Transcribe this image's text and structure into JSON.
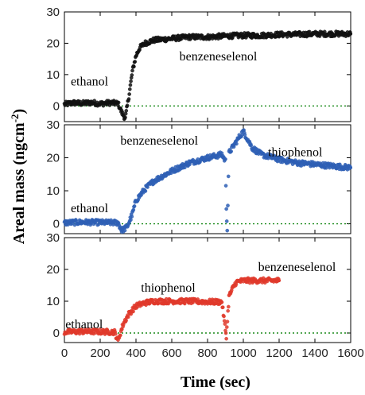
{
  "chart_data": {
    "type": "scatter",
    "xlabel": "Time (sec)",
    "ylabel": "Areal mass (ngcm",
    "ylabel_exp": "-2",
    "ylabel_close": ")",
    "xlim": [
      0,
      1600
    ],
    "x_ticks": [
      "0",
      "200",
      "400",
      "600",
      "800",
      "1000",
      "1200",
      "1400",
      "1600"
    ],
    "panels": [
      {
        "ylim": [
          -5,
          30
        ],
        "y_ticks": [
          "0",
          "10",
          "20",
          "30"
        ],
        "annotations": [
          {
            "text": "ethanol",
            "x": 140,
            "y": 6.5
          },
          {
            "text": "benzeneselenol",
            "x": 860,
            "y": 14.5
          }
        ],
        "series": [
          {
            "color": "#111111",
            "points": [
              [
                0,
                0.5
              ],
              [
                50,
                1.0
              ],
              [
                100,
                0.8
              ],
              [
                150,
                1.1
              ],
              [
                200,
                0.7
              ],
              [
                250,
                1.0
              ],
              [
                300,
                0.8
              ],
              [
                320,
                -2.0
              ],
              [
                340,
                -4.0
              ],
              [
                360,
                3.0
              ],
              [
                380,
                11.0
              ],
              [
                400,
                16.0
              ],
              [
                420,
                18.5
              ],
              [
                450,
                20.0
              ],
              [
                500,
                21.0
              ],
              [
                600,
                21.5
              ],
              [
                700,
                22.0
              ],
              [
                800,
                22.0
              ],
              [
                900,
                22.3
              ],
              [
                1000,
                22.5
              ],
              [
                1100,
                22.5
              ],
              [
                1200,
                22.8
              ],
              [
                1300,
                22.8
              ],
              [
                1400,
                23.0
              ],
              [
                1500,
                23.0
              ],
              [
                1600,
                23.0
              ]
            ]
          }
        ]
      },
      {
        "ylim": [
          -3,
          30
        ],
        "y_ticks": [
          "0",
          "10",
          "20",
          "30"
        ],
        "annotations": [
          {
            "text": "ethanol",
            "x": 140,
            "y": 3.5
          },
          {
            "text": "benzeneselenol",
            "x": 530,
            "y": 24.0
          },
          {
            "text": "thiophenol",
            "x": 1290,
            "y": 20.5
          }
        ],
        "series": [
          {
            "color": "#2e5fb5",
            "points": [
              [
                0,
                0.3
              ],
              [
                100,
                0.5
              ],
              [
                200,
                0.4
              ],
              [
                300,
                0.3
              ],
              [
                320,
                -2.0
              ],
              [
                350,
                -1.0
              ],
              [
                380,
                3.0
              ],
              [
                400,
                7.0
              ],
              [
                450,
                10.5
              ],
              [
                500,
                13.0
              ],
              [
                600,
                16.0
              ],
              [
                700,
                18.5
              ],
              [
                800,
                20.0
              ],
              [
                880,
                21.0
              ],
              [
                900,
                19.0
              ],
              [
                905,
                5.0
              ],
              [
                910,
                -2.0
              ],
              [
                920,
                21.5
              ],
              [
                950,
                24.0
              ],
              [
                980,
                26.5
              ],
              [
                1000,
                28.0
              ],
              [
                1020,
                26.0
              ],
              [
                1050,
                23.0
              ],
              [
                1100,
                21.0
              ],
              [
                1200,
                19.5
              ],
              [
                1300,
                18.5
              ],
              [
                1400,
                18.0
              ],
              [
                1500,
                17.5
              ],
              [
                1600,
                17.0
              ]
            ]
          }
        ]
      },
      {
        "ylim": [
          -3,
          30
        ],
        "y_ticks": [
          "0",
          "10",
          "20",
          "30"
        ],
        "annotations": [
          {
            "text": "ethanol",
            "x": 110,
            "y": 1.5
          },
          {
            "text": "thiophenol",
            "x": 580,
            "y": 13.0
          },
          {
            "text": "benzeneselenol",
            "x": 1300,
            "y": 19.5
          }
        ],
        "series": [
          {
            "color": "#e0392b",
            "points": [
              [
                0,
                0.3
              ],
              [
                100,
                0.5
              ],
              [
                200,
                0.4
              ],
              [
                280,
                0.3
              ],
              [
                300,
                -2.5
              ],
              [
                310,
                -0.5
              ],
              [
                330,
                3.0
              ],
              [
                360,
                6.0
              ],
              [
                400,
                8.5
              ],
              [
                450,
                9.5
              ],
              [
                500,
                10.0
              ],
              [
                600,
                10.0
              ],
              [
                700,
                10.0
              ],
              [
                800,
                9.8
              ],
              [
                880,
                9.8
              ],
              [
                900,
                1.0
              ],
              [
                905,
                -1.0
              ],
              [
                920,
                11.5
              ],
              [
                940,
                14.0
              ],
              [
                960,
                16.0
              ],
              [
                1000,
                16.5
              ],
              [
                1100,
                16.5
              ],
              [
                1200,
                16.5
              ]
            ]
          }
        ]
      }
    ]
  }
}
